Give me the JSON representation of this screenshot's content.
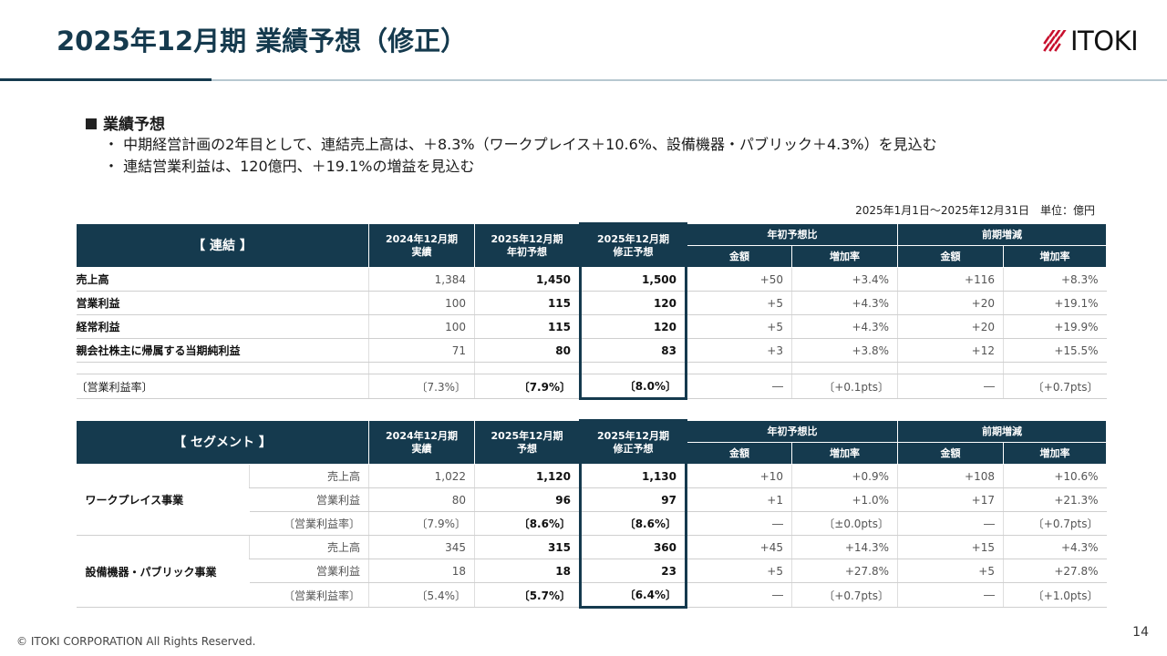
{
  "title": "2025年12月期 業績予想（修正）",
  "logo_text": "ITOKI",
  "summary": {
    "heading": "業績予想",
    "bullets": [
      "・ 中期経営計画の2年目として、連結売上高は、＋8.3%（ワークプレイス＋10.6%、設備機器・パブリック＋4.3%）を見込む",
      "・ 連結営業利益は、120億円、＋19.1%の増益を見込む"
    ]
  },
  "period_note": "2025年1月1日～2025年12月31日　単位：億円",
  "consolidated": {
    "header": {
      "main": "【 連結 】",
      "col1": [
        "2024年12月期",
        "実績"
      ],
      "col2": [
        "2025年12月期",
        "年初予想"
      ],
      "col3": [
        "2025年12月期",
        "修正予想"
      ],
      "group1": "年初予想比",
      "group2": "前期増減",
      "amount": "金額",
      "rate": "増加率"
    },
    "rows": [
      [
        "売上高",
        "1,384",
        "1,450",
        "1,500",
        "+50",
        "+3.4%",
        "+116",
        "+8.3%"
      ],
      [
        "営業利益",
        "100",
        "115",
        "120",
        "+5",
        "+4.3%",
        "+20",
        "+19.1%"
      ],
      [
        "経常利益",
        "100",
        "115",
        "120",
        "+5",
        "+4.3%",
        "+20",
        "+19.9%"
      ],
      [
        "親会社株主に帰属する当期純利益",
        "71",
        "80",
        "83",
        "+3",
        "+3.8%",
        "+12",
        "+15.5%"
      ]
    ],
    "margin_row": [
      "〔営業利益率〕",
      "〔7.3%〕",
      "〔7.9%〕",
      "〔8.0%〕",
      "―",
      "〔+0.1pts〕",
      "―",
      "〔+0.7pts〕"
    ]
  },
  "segment": {
    "header": {
      "main": "【 セグメント 】",
      "col1": [
        "2024年12月期",
        "実績"
      ],
      "col2": [
        "2025年12月期",
        "予想"
      ],
      "col3": [
        "2025年12月期",
        "修正予想"
      ],
      "group1": "年初予想比",
      "group2": "前期増減",
      "amount": "金額",
      "rate": "増加率"
    },
    "segments": [
      {
        "name": "ワークプレイス事業",
        "rows": [
          [
            "売上高",
            "1,022",
            "1,120",
            "1,130",
            "+10",
            "+0.9%",
            "+108",
            "+10.6%"
          ],
          [
            "営業利益",
            "80",
            "96",
            "97",
            "+1",
            "+1.0%",
            "+17",
            "+21.3%"
          ],
          [
            "〔営業利益率〕",
            "〔7.9%〕",
            "〔8.6%〕",
            "〔8.6%〕",
            "―",
            "〔±0.0pts〕",
            "―",
            "〔+0.7pts〕"
          ]
        ]
      },
      {
        "name": "設備機器・パブリック事業",
        "rows": [
          [
            "売上高",
            "345",
            "315",
            "360",
            "+45",
            "+14.3%",
            "+15",
            "+4.3%"
          ],
          [
            "営業利益",
            "18",
            "18",
            "23",
            "+5",
            "+27.8%",
            "+5",
            "+27.8%"
          ],
          [
            "〔営業利益率〕",
            "〔5.4%〕",
            "〔5.7%〕",
            "〔6.4%〕",
            "―",
            "〔+0.7pts〕",
            "―",
            "〔+1.0pts〕"
          ]
        ]
      }
    ]
  },
  "copyright": "© ITOKI CORPORATION All Rights Reserved.",
  "page_number": "14",
  "colors": {
    "navy": "#153a4e",
    "rule_light": "#b7c8d0",
    "logo_red": "#c8102e"
  }
}
